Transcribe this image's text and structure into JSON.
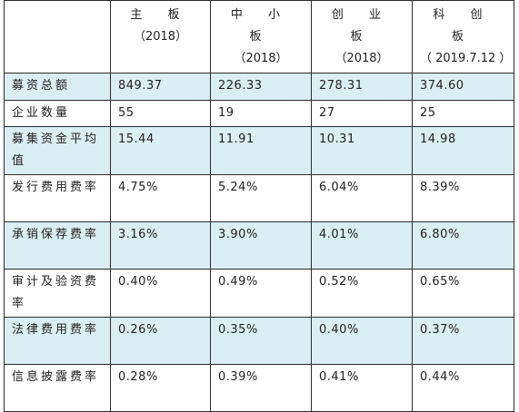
{
  "headers": [
    {
      "name": "主 板",
      "year": "（2018）"
    },
    {
      "name": "中 小 板",
      "year": "（2018）"
    },
    {
      "name": "创 业 板",
      "year": "（2018）"
    },
    {
      "name": "科 创 板",
      "year": "（ 2019.7.12 ）"
    }
  ],
  "rows": [
    {
      "label": "募资总额",
      "values": [
        "849.37",
        "226.33",
        "278.31",
        "374.60"
      ]
    },
    {
      "label": "企业数量",
      "values": [
        "55",
        "19",
        "27",
        "25"
      ]
    },
    {
      "label": "募集资金平均值",
      "values": [
        "15.44",
        "11.91",
        "10.31",
        "14.98"
      ]
    },
    {
      "label": "发行费用费率",
      "values": [
        "4.75%",
        "5.24%",
        "6.04%",
        "8.39%"
      ]
    },
    {
      "label": "承销保荐费率",
      "values": [
        "3.16%",
        "3.90%",
        "4.01%",
        "6.80%"
      ]
    },
    {
      "label": "审计及验资费率",
      "values": [
        "0.40%",
        "0.49%",
        "0.52%",
        "0.65%"
      ]
    },
    {
      "label": "法律费用费率",
      "values": [
        "0.26%",
        "0.35%",
        "0.40%",
        "0.37%"
      ]
    },
    {
      "label": "信息披露费率",
      "values": [
        "0.28%",
        "0.39%",
        "0.41%",
        "0.44%"
      ]
    }
  ],
  "colors": {
    "row_shade": "#daeef3",
    "border": "#2b2b2b"
  }
}
